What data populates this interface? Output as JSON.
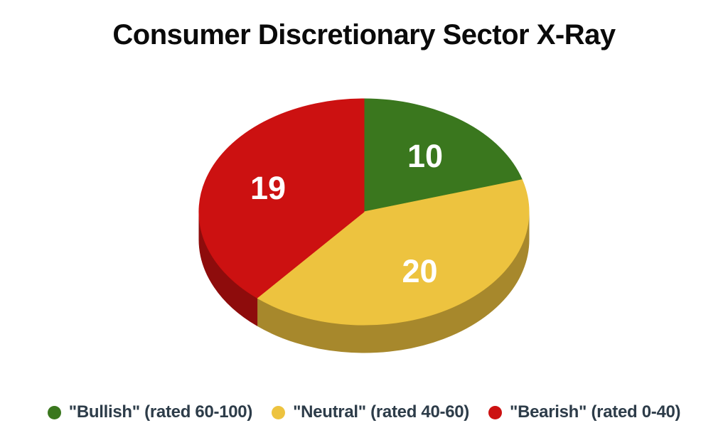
{
  "page": {
    "background": "#ffffff"
  },
  "chart_data": {
    "type": "pie",
    "style": "3d",
    "title": "Consumer Discretionary Sector X-Ray",
    "title_color": "#0a0a0a",
    "legend_position": "bottom",
    "legend_text_color": "#2d3c49",
    "value_label_color": "#ffffff",
    "start_angle_deg": 0,
    "direction": "clockwise",
    "total": 49,
    "series": [
      {
        "key": "bullish",
        "name": "\"Bullish\" (rated 60-100)",
        "value": 10,
        "color": "#3a771e"
      },
      {
        "key": "neutral",
        "name": "\"Neutral\" (rated 40-60)",
        "value": 20,
        "color": "#edc33f",
        "side_color": "#a7882c"
      },
      {
        "key": "bearish",
        "name": "\"Bearish\" (rated 0-40)",
        "value": 19,
        "color": "#cc1111",
        "side_color": "#8e0c0c"
      }
    ]
  }
}
